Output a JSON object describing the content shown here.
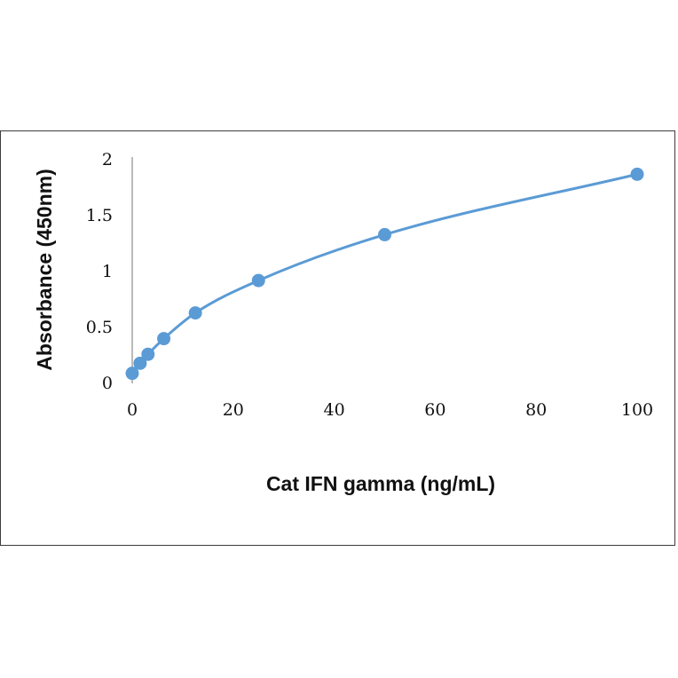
{
  "chart_data": {
    "type": "scatter",
    "title": "",
    "xlabel": "Cat IFN gamma (ng/mL)",
    "ylabel": "Absorbance (450nm)",
    "xlim": [
      0,
      100
    ],
    "ylim": [
      0,
      2
    ],
    "xticks": [
      0,
      20,
      40,
      60,
      80,
      100
    ],
    "yticks": [
      0,
      0.5,
      1,
      1.5,
      2
    ],
    "xtick_labels": [
      "0",
      "20",
      "40",
      "60",
      "80",
      "100"
    ],
    "ytick_labels": [
      "0",
      "0.5",
      "1",
      "1.5",
      "2"
    ],
    "grid": false,
    "legend": "none",
    "fit_line": "smooth curve through points",
    "series": [
      {
        "x": [
          0,
          1.56,
          3.125,
          6.25,
          12.5,
          25,
          50,
          100
        ],
        "y": [
          0.09,
          0.18,
          0.26,
          0.4,
          0.63,
          0.92,
          1.33,
          1.87
        ],
        "color": "#5b9bd5"
      }
    ]
  }
}
